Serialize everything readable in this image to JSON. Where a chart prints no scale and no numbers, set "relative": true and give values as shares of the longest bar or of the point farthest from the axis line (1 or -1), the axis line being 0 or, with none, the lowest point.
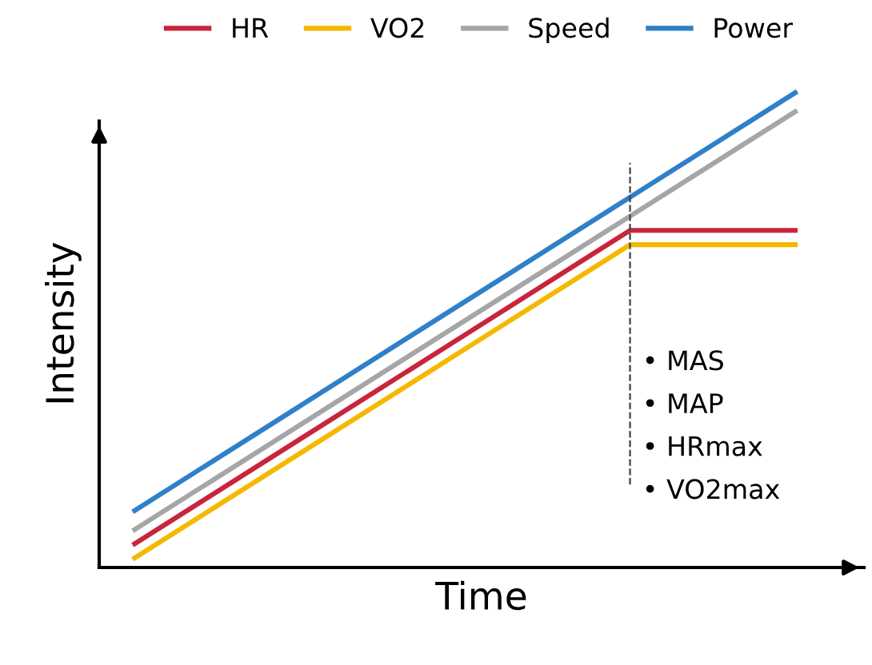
{
  "chart_data": {
    "type": "line",
    "relative": true,
    "xlabel": "Time",
    "ylabel": "Intensity",
    "categories": [
      null,
      null,
      null,
      null,
      null
    ],
    "series": [
      {
        "name": "HR",
        "color": "#c8243c",
        "values": [
          0.05,
          0.27,
          0.49,
          0.71,
          0.71
        ]
      },
      {
        "name": "VO2",
        "color": "#f5b800",
        "values": [
          0.02,
          0.24,
          0.46,
          0.68,
          0.68
        ]
      },
      {
        "name": "Speed",
        "color": "#a6a6a6",
        "values": [
          0.08,
          0.3,
          0.52,
          0.74,
          0.96
        ]
      },
      {
        "name": "Power",
        "color": "#2f80c8",
        "values": [
          0.12,
          0.34,
          0.56,
          0.78,
          1.0
        ]
      }
    ],
    "annotations": [
      "• MAS",
      "• MAP",
      "• HRmax",
      "• VO2max"
    ],
    "legend": "top",
    "marker": "none",
    "line_style": "solid"
  }
}
